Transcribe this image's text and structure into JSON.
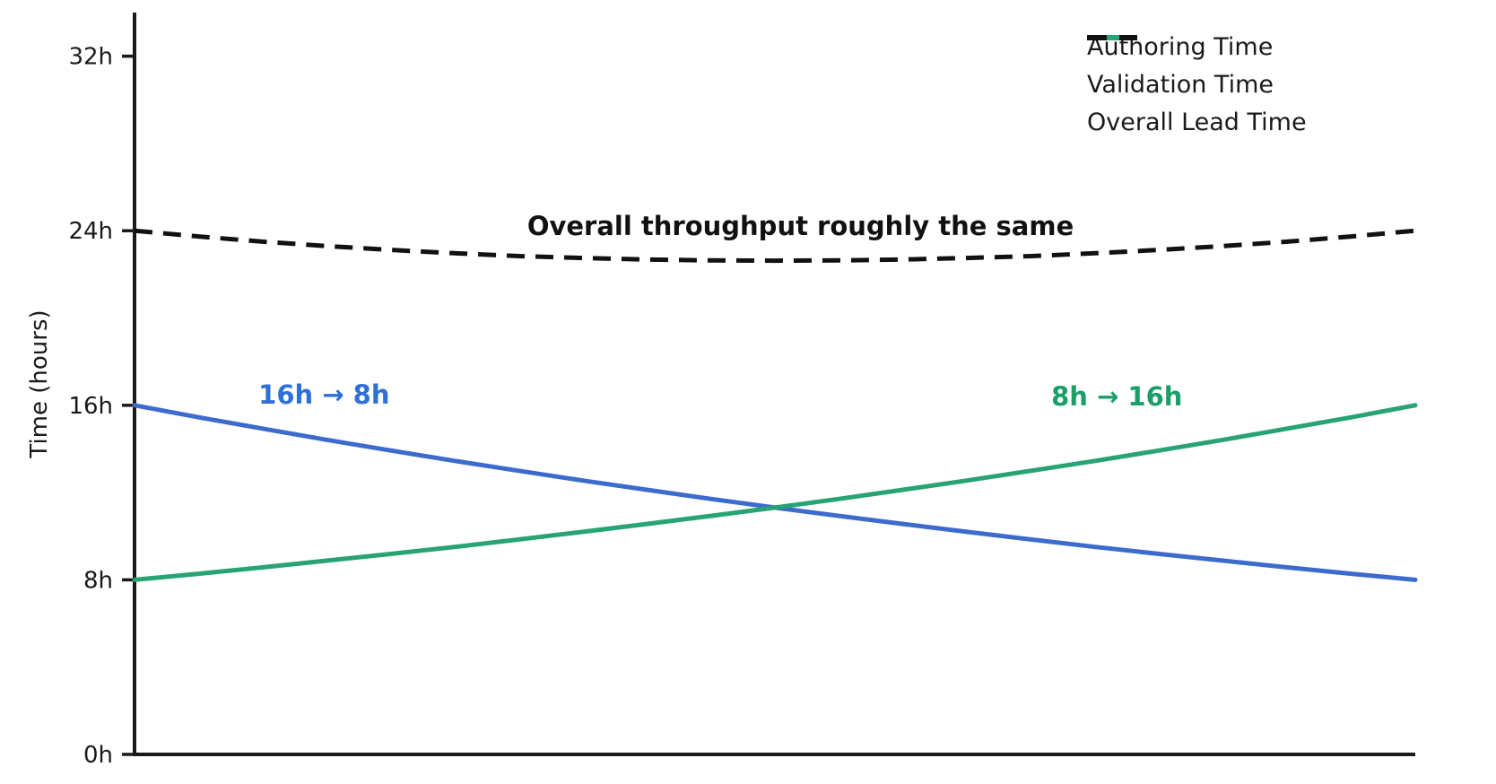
{
  "chart_data": {
    "type": "line",
    "title": "",
    "xlabel": "",
    "ylabel": "Time (hours)",
    "ylim": [
      0,
      34
    ],
    "grid": false,
    "legend_position": "top-right",
    "background": "#ffffff",
    "axis_color": "#1a1a1a",
    "yticks": [
      {
        "value": 0,
        "label": "0h"
      },
      {
        "value": 8,
        "label": "8h"
      },
      {
        "value": 16,
        "label": "16h"
      },
      {
        "value": 24,
        "label": "24h"
      },
      {
        "value": 32,
        "label": "32h"
      }
    ],
    "x": [
      0,
      0.05,
      0.1,
      0.15,
      0.2,
      0.25,
      0.3,
      0.35,
      0.4,
      0.45,
      0.5,
      0.55,
      0.6,
      0.65,
      0.7,
      0.75,
      0.8,
      0.85,
      0.9,
      0.95,
      1
    ],
    "series": [
      {
        "name": "Authoring Time",
        "color": "#3d6bcd",
        "style": "solid",
        "start_value_hours": 16,
        "end_value_hours": 8,
        "values": [
          16,
          15.45,
          14.93,
          14.42,
          13.93,
          13.45,
          13.0,
          12.55,
          12.13,
          11.71,
          11.31,
          10.93,
          10.56,
          10.2,
          9.85,
          9.51,
          9.19,
          8.88,
          8.57,
          8.28,
          8
        ]
      },
      {
        "name": "Validation Time",
        "color": "#27a374",
        "style": "solid",
        "start_value_hours": 8,
        "end_value_hours": 16,
        "values": [
          8,
          8.28,
          8.57,
          8.88,
          9.19,
          9.51,
          9.85,
          10.2,
          10.56,
          10.93,
          11.31,
          11.71,
          12.13,
          12.55,
          13.0,
          13.45,
          13.93,
          14.42,
          14.93,
          15.45,
          16
        ]
      },
      {
        "name": "Overall Lead Time",
        "color": "#111111",
        "style": "dashed",
        "start_value_hours": 24,
        "end_value_hours": 24,
        "values": [
          24,
          23.74,
          23.5,
          23.3,
          23.12,
          22.97,
          22.84,
          22.75,
          22.68,
          22.64,
          22.63,
          22.64,
          22.68,
          22.75,
          22.84,
          22.97,
          23.12,
          23.3,
          23.5,
          23.74,
          24
        ]
      }
    ],
    "annotations": [
      {
        "text": "16h → 8h",
        "color": "#2f6fd8",
        "x": 0.148,
        "y": 16.5
      },
      {
        "text": "8h → 16h",
        "color": "#1b9e68",
        "x": 0.767,
        "y": 16.4
      },
      {
        "text": "Overall throughput roughly the same",
        "color": "#111111",
        "x": 0.52,
        "y": 24.2
      }
    ]
  }
}
